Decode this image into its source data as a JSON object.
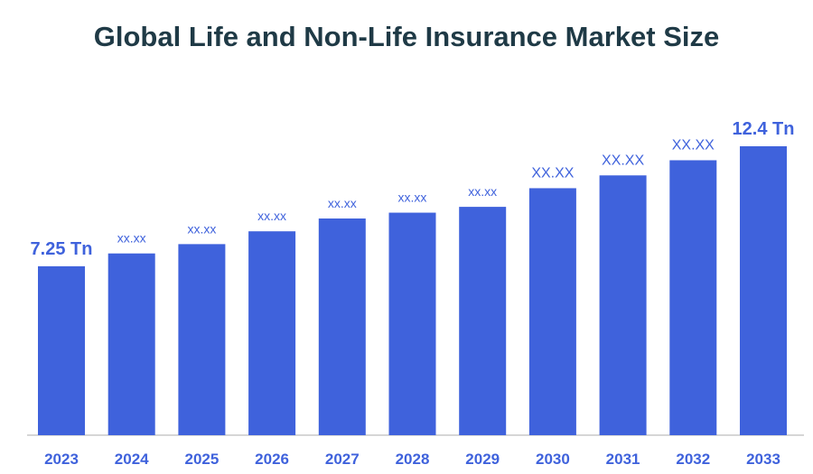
{
  "chart_data": {
    "type": "bar",
    "title": "Global Life and Non-Life Insurance Market Size",
    "xlabel": "",
    "ylabel": "",
    "ylim": [
      0,
      13.5
    ],
    "grid": false,
    "legend": "none",
    "categories": [
      "2023",
      "2024",
      "2025",
      "2026",
      "2027",
      "2028",
      "2029",
      "2030",
      "2031",
      "2032",
      "2033"
    ],
    "values": [
      7.25,
      7.8,
      8.2,
      8.75,
      9.3,
      9.55,
      9.8,
      10.6,
      11.15,
      11.8,
      12.4
    ],
    "data_labels": [
      "7.25 Tn",
      "xx.xx",
      "xx.xx",
      "xx.xx",
      "xx.xx",
      "xx.xx",
      "xx.xx",
      "XX.XX",
      "XX.XX",
      "XX.XX",
      "12.4 Tn"
    ],
    "colors": {
      "bar": "#3f62dc",
      "label": "#3f62dc",
      "title": "#1f3a46",
      "axis": "#c9c9c9"
    }
  }
}
